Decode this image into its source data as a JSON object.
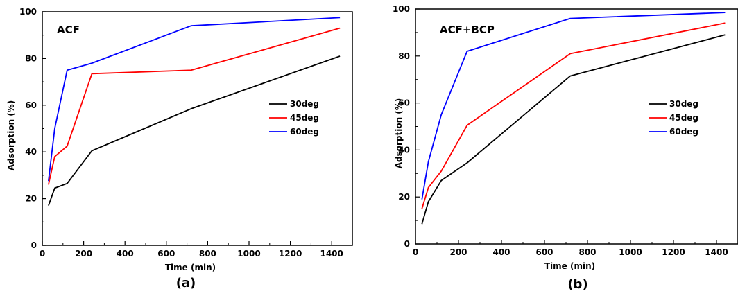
{
  "chart_data": [
    {
      "type": "line",
      "caption": "(a)",
      "label": "ACF",
      "xlabel": "Time (min)",
      "ylabel": "Adsorption (%)",
      "xlim": [
        0,
        1500
      ],
      "ylim": [
        0,
        100
      ],
      "xticks": [
        0,
        200,
        400,
        600,
        800,
        1000,
        1200,
        1400
      ],
      "yticks": [
        0,
        20,
        40,
        60,
        80,
        100
      ],
      "legend": "right",
      "series": [
        {
          "name": "30deg",
          "color": "#000000",
          "x": [
            30,
            60,
            120,
            240,
            720,
            1440
          ],
          "y": [
            17,
            24.5,
            26.5,
            40.5,
            58.5,
            81
          ]
        },
        {
          "name": "45deg",
          "color": "#ff0000",
          "x": [
            30,
            60,
            120,
            240,
            720,
            1440
          ],
          "y": [
            26,
            38,
            42.5,
            73.5,
            75,
            93
          ]
        },
        {
          "name": "60deg",
          "color": "#0000ff",
          "x": [
            30,
            60,
            120,
            240,
            720,
            1440
          ],
          "y": [
            27.5,
            50,
            75,
            78,
            94,
            97.5
          ]
        }
      ]
    },
    {
      "type": "line",
      "caption": "(b)",
      "label": "ACF+BCP",
      "xlabel": "Time (min)",
      "ylabel": "Adsorption (%)",
      "xlim": [
        0,
        1500
      ],
      "ylim": [
        0,
        100
      ],
      "xticks": [
        0,
        200,
        400,
        600,
        800,
        1000,
        1200,
        1400
      ],
      "yticks": [
        0,
        20,
        40,
        60,
        80,
        100
      ],
      "legend": "right",
      "series": [
        {
          "name": "30deg",
          "color": "#000000",
          "x": [
            30,
            60,
            120,
            240,
            720,
            1440
          ],
          "y": [
            8.5,
            18,
            27,
            34.5,
            71.5,
            89
          ]
        },
        {
          "name": "45deg",
          "color": "#ff0000",
          "x": [
            30,
            60,
            120,
            240,
            720,
            1440
          ],
          "y": [
            15,
            24,
            31,
            50.5,
            81,
            94
          ]
        },
        {
          "name": "60deg",
          "color": "#0000ff",
          "x": [
            30,
            60,
            120,
            240,
            720,
            1440
          ],
          "y": [
            19,
            35,
            55,
            82,
            96,
            98.5
          ]
        }
      ]
    }
  ]
}
